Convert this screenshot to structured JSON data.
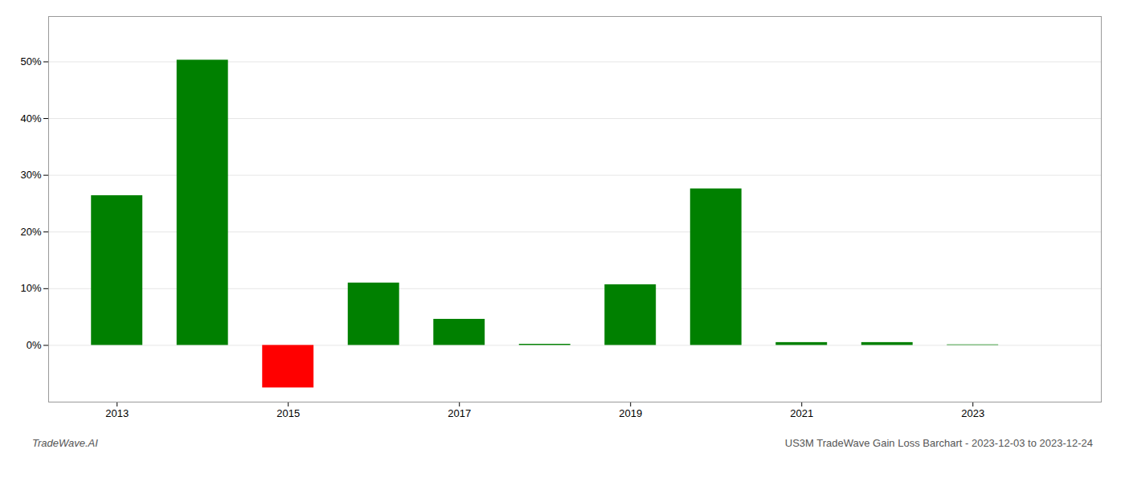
{
  "chart_data": {
    "type": "bar",
    "x": [
      2013,
      2014,
      2015,
      2016,
      2017,
      2018,
      2019,
      2020,
      2021,
      2022,
      2023
    ],
    "values": [
      0.264,
      0.503,
      -0.075,
      0.11,
      0.046,
      0.002,
      0.107,
      0.276,
      0.005,
      0.005,
      0.001
    ],
    "colors": [
      "#008000",
      "#008000",
      "#ff0000",
      "#008000",
      "#008000",
      "#008000",
      "#008000",
      "#008000",
      "#008000",
      "#008000",
      "#008000"
    ],
    "xlim": [
      2012.2,
      2024.5
    ],
    "xticks": [
      2013,
      2015,
      2017,
      2019,
      2021,
      2023
    ],
    "ylim": [
      -0.1,
      0.58
    ],
    "yticks": [
      {
        "value": 0.0,
        "label": "0%"
      },
      {
        "value": 0.1,
        "label": "10%"
      },
      {
        "value": 0.2,
        "label": "20%"
      },
      {
        "value": 0.3,
        "label": "30%"
      },
      {
        "value": 0.4,
        "label": "40%"
      },
      {
        "value": 0.5,
        "label": "50%"
      }
    ],
    "grid": true,
    "annotations": [
      "TradeWave.AI",
      "US3M TradeWave Gain Loss Barchart - 2023-12-03 to 2023-12-24"
    ]
  }
}
